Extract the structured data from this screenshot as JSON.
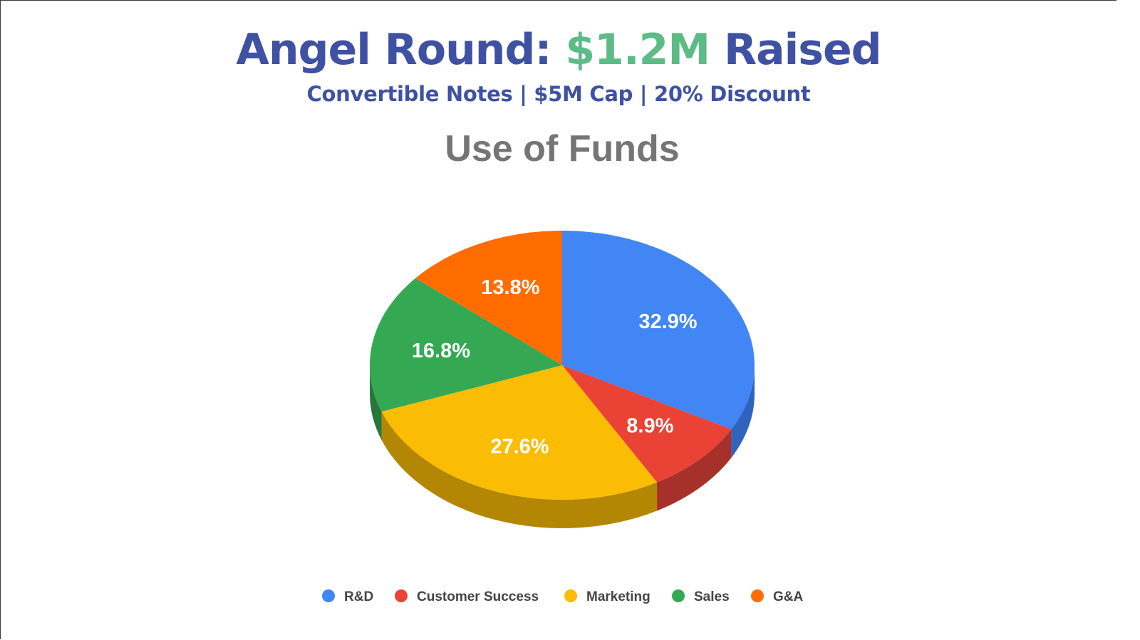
{
  "header": {
    "title_prefix": "Angel Round: ",
    "title_amount": "$1.2M",
    "title_suffix": " Raised",
    "subtitle": "Convertible Notes | $5M Cap | 20% Discount"
  },
  "colors": {
    "title": "#3f51a3",
    "amount": "#5dbb86"
  },
  "chart_data": {
    "type": "pie",
    "title": "Use of Funds",
    "style": "3d",
    "legend_position": "bottom",
    "categories": [
      "R&D",
      "Customer Success",
      "Marketing",
      "Sales",
      "G&A"
    ],
    "values": [
      32.9,
      8.9,
      27.6,
      16.8,
      13.8
    ],
    "labels": [
      "32.9%",
      "8.9%",
      "27.6%",
      "16.8%",
      "13.8%"
    ],
    "colors": [
      "#4285f4",
      "#ea4335",
      "#fbbc04",
      "#34a853",
      "#ff6d01"
    ],
    "side_colors": [
      "#2f63be",
      "#a6302a",
      "#b38703",
      "#25773b",
      "#b54d01"
    ]
  }
}
